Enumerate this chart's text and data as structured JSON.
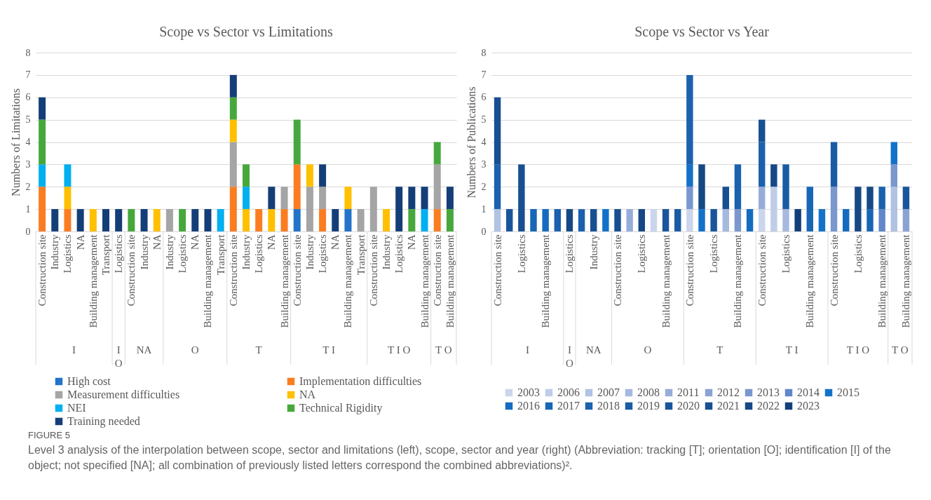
{
  "chart_data": [
    {
      "type": "bar",
      "title": "Scope vs Sector vs Limitations",
      "ylabel": "Numbers of Limitations",
      "stacked": true,
      "grid": "y",
      "legend": "bottom",
      "ylim": [
        0,
        8
      ],
      "yticks": [
        0,
        1,
        2,
        3,
        4,
        5,
        6,
        7,
        8
      ],
      "categories": [
        "Construction site",
        "Industry",
        "Logistics",
        "NA",
        "Building management",
        "Transport",
        "Logistics",
        "Construction site",
        "Industry",
        "NA",
        "Industry",
        "Logistics",
        "NA",
        "Building management",
        "Transport",
        "Construction site",
        "Industry",
        "Logistics",
        "NA",
        "Building management",
        "Construction site",
        "Industry",
        "Logistics",
        "NA",
        "Building management",
        "Transport",
        "Construction site",
        "Industry",
        "Logistics",
        "NA",
        "Building management",
        "Construction site",
        "Building management"
      ],
      "series": [
        {
          "name": "High cost",
          "color": "#2373c8",
          "values": [
            null,
            null,
            null,
            null,
            null,
            null,
            null,
            null,
            null,
            null,
            null,
            null,
            null,
            null,
            null,
            null,
            null,
            null,
            null,
            null,
            1,
            null,
            null,
            null,
            1,
            null,
            null,
            null,
            null,
            null,
            null,
            null,
            null
          ]
        },
        {
          "name": "Implementation difficulties",
          "color": "#fa7d22",
          "values": [
            2,
            null,
            1,
            null,
            null,
            null,
            null,
            null,
            null,
            null,
            null,
            null,
            null,
            null,
            null,
            2,
            null,
            1,
            null,
            1,
            2,
            null,
            1,
            null,
            null,
            null,
            null,
            null,
            null,
            null,
            null,
            1,
            null
          ]
        },
        {
          "name": "Measurement difficulties",
          "color": "#a5a5a5",
          "values": [
            null,
            null,
            null,
            null,
            null,
            null,
            null,
            null,
            null,
            null,
            1,
            null,
            null,
            null,
            null,
            2,
            null,
            null,
            null,
            1,
            null,
            2,
            1,
            null,
            null,
            1,
            2,
            null,
            null,
            null,
            null,
            2,
            null
          ]
        },
        {
          "name": "NA",
          "color": "#ffc000",
          "values": [
            null,
            null,
            1,
            null,
            1,
            null,
            null,
            null,
            null,
            1,
            null,
            null,
            null,
            null,
            null,
            1,
            1,
            null,
            1,
            null,
            null,
            1,
            null,
            null,
            1,
            null,
            null,
            1,
            null,
            null,
            null,
            null,
            null
          ]
        },
        {
          "name": "NEI",
          "color": "#00b0f0",
          "values": [
            1,
            null,
            1,
            null,
            null,
            null,
            null,
            null,
            null,
            null,
            null,
            null,
            null,
            null,
            1,
            null,
            1,
            null,
            null,
            null,
            null,
            null,
            null,
            null,
            null,
            null,
            null,
            null,
            null,
            null,
            1,
            null,
            null
          ]
        },
        {
          "name": "Technical Rigidity",
          "color": "#46a83c",
          "values": [
            2,
            null,
            null,
            null,
            null,
            null,
            null,
            1,
            null,
            null,
            null,
            1,
            null,
            null,
            null,
            1,
            1,
            null,
            null,
            null,
            2,
            null,
            null,
            null,
            null,
            null,
            null,
            null,
            null,
            1,
            null,
            1,
            1
          ]
        },
        {
          "name": "Training  needed",
          "color": "#143e78",
          "values": [
            1,
            1,
            null,
            1,
            null,
            1,
            1,
            null,
            1,
            null,
            null,
            null,
            1,
            1,
            null,
            1,
            null,
            null,
            1,
            null,
            null,
            null,
            1,
            1,
            null,
            null,
            null,
            null,
            2,
            1,
            1,
            null,
            1
          ]
        }
      ],
      "annotations": [
        "I",
        "I O",
        "NA",
        "O",
        "T",
        "T I",
        "T I O",
        "T O",
        "FIGURE 5",
        "Level 3 analysis of the interpolation between scope, sector and limitations (left), scope, sector and year (right) (Abbreviation: tracking [T]; orientation [O]; identification [I] of the object; not specified [NA]; all combination of previously listed letters correspond the combined abbreviations)²."
      ]
    },
    {
      "type": "bar",
      "title": "Scope vs Sector vs Year",
      "ylabel": "Numbers of Publications",
      "stacked": true,
      "grid": "y",
      "legend": "bottom",
      "ylim": [
        0,
        8
      ],
      "yticks": [
        0,
        1,
        2,
        3,
        4,
        5,
        6,
        7,
        8
      ],
      "categories": [
        "Construction site",
        null,
        "Logistics",
        null,
        "Building management",
        null,
        "Logistics",
        null,
        "Industry",
        null,
        "Construction site",
        null,
        "Logistics",
        null,
        "Building management",
        null,
        "Construction site",
        null,
        "Logistics",
        null,
        "Building management",
        null,
        "Construction site",
        null,
        "Logistics",
        null,
        "Building management",
        null,
        "Construction site",
        null,
        "Logistics",
        null,
        "Building management",
        null,
        "Building management"
      ],
      "series": [
        {
          "name": "2003",
          "color": "#cbd6ec",
          "values": [
            null,
            null,
            null,
            null,
            null,
            null,
            null,
            null,
            null,
            null,
            null,
            null,
            null,
            1,
            null,
            null,
            1,
            null,
            null,
            null,
            null,
            null,
            1,
            null,
            null,
            null,
            null,
            null,
            null,
            null,
            null,
            null,
            null,
            null,
            null
          ]
        },
        {
          "name": "2006",
          "color": "#bfcde8",
          "values": [
            null,
            null,
            null,
            null,
            null,
            null,
            null,
            null,
            null,
            null,
            null,
            null,
            null,
            null,
            null,
            null,
            null,
            null,
            null,
            null,
            null,
            null,
            null,
            2,
            null,
            null,
            null,
            null,
            null,
            null,
            null,
            null,
            null,
            null,
            null
          ]
        },
        {
          "name": "2007",
          "color": "#b1c2e3",
          "values": [
            1,
            null,
            null,
            null,
            null,
            null,
            null,
            null,
            null,
            null,
            null,
            null,
            null,
            null,
            null,
            null,
            null,
            null,
            null,
            null,
            null,
            null,
            null,
            null,
            null,
            null,
            null,
            null,
            null,
            null,
            null,
            null,
            null,
            2,
            null
          ]
        },
        {
          "name": "2008",
          "color": "#a6b9df",
          "values": [
            null,
            null,
            null,
            null,
            null,
            null,
            null,
            null,
            null,
            null,
            null,
            null,
            null,
            null,
            null,
            null,
            null,
            null,
            null,
            1,
            null,
            null,
            null,
            null,
            1,
            null,
            null,
            null,
            null,
            null,
            null,
            null,
            null,
            null,
            null
          ]
        },
        {
          "name": "2011",
          "color": "#97add9",
          "values": [
            null,
            null,
            null,
            null,
            null,
            null,
            null,
            null,
            null,
            null,
            null,
            1,
            null,
            null,
            null,
            null,
            null,
            null,
            null,
            null,
            null,
            null,
            1,
            null,
            null,
            null,
            null,
            null,
            null,
            null,
            null,
            null,
            null,
            null,
            null
          ]
        },
        {
          "name": "2012",
          "color": "#8aa3d3",
          "values": [
            null,
            null,
            null,
            null,
            null,
            null,
            null,
            null,
            null,
            null,
            null,
            null,
            null,
            null,
            null,
            null,
            null,
            null,
            null,
            null,
            null,
            null,
            null,
            null,
            null,
            null,
            null,
            null,
            null,
            null,
            null,
            null,
            null,
            null,
            1
          ]
        },
        {
          "name": "2013",
          "color": "#7a97ce",
          "values": [
            null,
            null,
            null,
            null,
            null,
            null,
            null,
            null,
            null,
            null,
            null,
            null,
            null,
            null,
            null,
            null,
            1,
            null,
            null,
            null,
            1,
            null,
            null,
            null,
            null,
            null,
            null,
            null,
            2,
            null,
            null,
            null,
            null,
            1,
            null
          ]
        },
        {
          "name": "2014",
          "color": "#5f87c9",
          "values": [
            null,
            null,
            null,
            null,
            null,
            null,
            null,
            null,
            null,
            null,
            null,
            null,
            null,
            null,
            null,
            null,
            null,
            null,
            null,
            null,
            null,
            null,
            null,
            null,
            null,
            null,
            null,
            null,
            null,
            null,
            null,
            null,
            1,
            null,
            null
          ]
        },
        {
          "name": "2015",
          "color": "#1372c8",
          "values": [
            null,
            null,
            null,
            null,
            null,
            null,
            null,
            null,
            null,
            1,
            null,
            null,
            null,
            null,
            null,
            null,
            1,
            1,
            null,
            null,
            null,
            null,
            null,
            null,
            null,
            null,
            null,
            1,
            null,
            null,
            null,
            null,
            null,
            1,
            null
          ]
        },
        {
          "name": "2016",
          "color": "#156bc0",
          "values": [
            null,
            null,
            null,
            null,
            1,
            null,
            null,
            null,
            null,
            null,
            null,
            null,
            null,
            null,
            null,
            null,
            null,
            null,
            null,
            null,
            null,
            1,
            null,
            null,
            null,
            null,
            null,
            null,
            null,
            1,
            null,
            null,
            null,
            null,
            null
          ]
        },
        {
          "name": "2017",
          "color": "#1866b6",
          "values": [
            null,
            null,
            null,
            1,
            null,
            null,
            null,
            null,
            null,
            null,
            null,
            null,
            null,
            null,
            null,
            null,
            null,
            null,
            null,
            null,
            null,
            null,
            null,
            null,
            null,
            null,
            2,
            null,
            null,
            null,
            null,
            1,
            null,
            null,
            null
          ]
        },
        {
          "name": "2018",
          "color": "#1b61ad",
          "values": [
            2,
            null,
            null,
            null,
            null,
            1,
            null,
            1,
            null,
            null,
            null,
            null,
            null,
            null,
            null,
            null,
            4,
            null,
            null,
            null,
            2,
            null,
            2,
            null,
            null,
            null,
            null,
            null,
            null,
            null,
            null,
            null,
            1,
            null,
            null
          ]
        },
        {
          "name": "2019",
          "color": "#1a5ba4",
          "values": [
            null,
            null,
            null,
            null,
            null,
            null,
            null,
            null,
            null,
            null,
            null,
            null,
            null,
            null,
            null,
            1,
            null,
            null,
            null,
            null,
            null,
            null,
            null,
            null,
            2,
            null,
            null,
            null,
            2,
            null,
            null,
            null,
            null,
            null,
            null
          ]
        },
        {
          "name": "2020",
          "color": "#19559b",
          "values": [
            null,
            1,
            null,
            null,
            null,
            null,
            null,
            null,
            null,
            null,
            null,
            null,
            null,
            null,
            1,
            null,
            null,
            null,
            1,
            null,
            null,
            null,
            null,
            null,
            null,
            null,
            null,
            null,
            null,
            null,
            null,
            null,
            null,
            null,
            1
          ]
        },
        {
          "name": "2021",
          "color": "#184f91",
          "values": [
            3,
            null,
            3,
            null,
            null,
            null,
            null,
            null,
            1,
            null,
            1,
            null,
            null,
            null,
            null,
            null,
            null,
            null,
            null,
            1,
            null,
            null,
            1,
            null,
            null,
            null,
            null,
            null,
            null,
            null,
            null,
            null,
            null,
            null,
            null
          ]
        },
        {
          "name": "2022",
          "color": "#164885",
          "values": [
            null,
            null,
            null,
            null,
            null,
            null,
            1,
            null,
            null,
            null,
            null,
            null,
            1,
            null,
            null,
            null,
            null,
            2,
            null,
            null,
            null,
            null,
            null,
            1,
            null,
            null,
            null,
            null,
            null,
            null,
            2,
            1,
            null,
            null,
            null
          ]
        },
        {
          "name": "2023",
          "color": "#133f78",
          "values": [
            null,
            null,
            null,
            null,
            null,
            null,
            null,
            null,
            null,
            null,
            null,
            null,
            null,
            null,
            null,
            null,
            null,
            null,
            null,
            null,
            null,
            null,
            null,
            null,
            null,
            1,
            null,
            null,
            null,
            null,
            null,
            null,
            null,
            null,
            null
          ]
        }
      ],
      "annotations": [
        "I",
        "I O",
        "NA",
        "O",
        "T",
        "T I",
        "T I O",
        "T O"
      ]
    }
  ]
}
